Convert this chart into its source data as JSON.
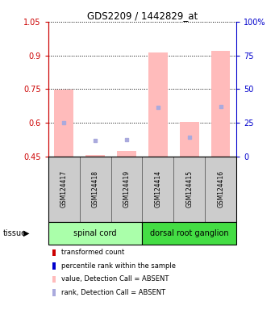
{
  "title": "GDS2209 / 1442829_at",
  "samples": [
    "GSM124417",
    "GSM124418",
    "GSM124419",
    "GSM124414",
    "GSM124415",
    "GSM124416"
  ],
  "groups": [
    {
      "name": "spinal cord",
      "color": "#aaffaa"
    },
    {
      "name": "dorsal root ganglion",
      "color": "#44dd44"
    }
  ],
  "group_sample_counts": [
    3,
    3
  ],
  "pink_bar_tops": [
    0.748,
    0.456,
    0.476,
    0.914,
    0.605,
    0.921
  ],
  "pink_bar_bottom": 0.45,
  "blue_square_vals": [
    0.601,
    0.521,
    0.526,
    0.668,
    0.536,
    0.672
  ],
  "ylim": [
    0.45,
    1.05
  ],
  "yticks_left": [
    0.45,
    0.6,
    0.75,
    0.9,
    1.05
  ],
  "yticks_right_labels": [
    "0",
    "25",
    "50",
    "75",
    "100%"
  ],
  "yticks_right_vals": [
    0.45,
    0.6,
    0.75,
    0.9,
    1.05
  ],
  "left_axis_color": "#cc0000",
  "right_axis_color": "#0000cc",
  "bar_width": 0.6,
  "pink_color": "#ffbbbb",
  "blue_color": "#aaaadd",
  "legend_items": [
    {
      "label": "transformed count",
      "color": "#cc0000"
    },
    {
      "label": "percentile rank within the sample",
      "color": "#0000cc"
    },
    {
      "label": "value, Detection Call = ABSENT",
      "color": "#ffbbbb"
    },
    {
      "label": "rank, Detection Call = ABSENT",
      "color": "#aaaadd"
    }
  ],
  "tissue_label": "tissue",
  "grid_color": "#000000",
  "box_color": "#cccccc",
  "box_edge_color": "#555555"
}
